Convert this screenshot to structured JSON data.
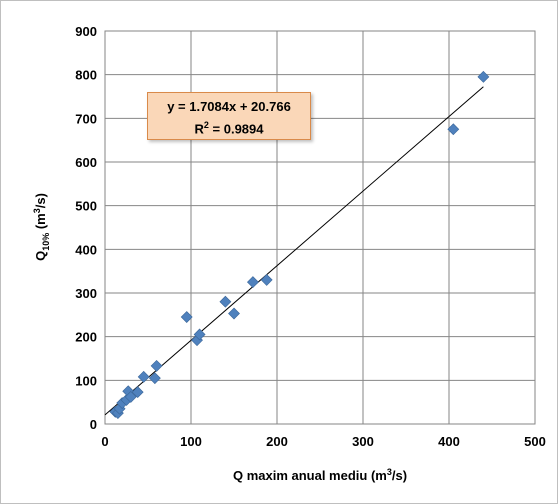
{
  "chart_data": {
    "type": "scatter",
    "xlabel_prefix": "Q maxim anual mediu (m",
    "xlabel_sup": "3",
    "xlabel_suffix": "/s)",
    "ylabel_main": "Q",
    "ylabel_sub": "10%",
    "ylabel_units_prefix": " (m",
    "ylabel_units_sup": "3",
    "ylabel_units_suffix": "/s)",
    "xlim": [
      0,
      500
    ],
    "ylim": [
      0,
      900
    ],
    "xticks": [
      0,
      100,
      200,
      300,
      400,
      500
    ],
    "yticks": [
      0,
      100,
      200,
      300,
      400,
      500,
      600,
      700,
      800,
      900
    ],
    "grid": true,
    "marker_color": "#4f81bd",
    "trendline": {
      "slope": 1.7084,
      "intercept": 20.766,
      "x_range": [
        0,
        440
      ],
      "color": "#000000"
    },
    "equation_text": "y = 1.7084x + 20.766",
    "r2_prefix": "R",
    "r2_sup": "2",
    "r2_suffix": " = 0.9894",
    "points": [
      {
        "x": 12,
        "y": 28
      },
      {
        "x": 15,
        "y": 25
      },
      {
        "x": 17,
        "y": 35
      },
      {
        "x": 20,
        "y": 48
      },
      {
        "x": 25,
        "y": 55
      },
      {
        "x": 27,
        "y": 75
      },
      {
        "x": 30,
        "y": 62
      },
      {
        "x": 38,
        "y": 73
      },
      {
        "x": 45,
        "y": 108
      },
      {
        "x": 58,
        "y": 105
      },
      {
        "x": 60,
        "y": 133
      },
      {
        "x": 95,
        "y": 245
      },
      {
        "x": 107,
        "y": 192
      },
      {
        "x": 110,
        "y": 205
      },
      {
        "x": 140,
        "y": 280
      },
      {
        "x": 150,
        "y": 253
      },
      {
        "x": 172,
        "y": 325
      },
      {
        "x": 188,
        "y": 330
      },
      {
        "x": 405,
        "y": 675
      },
      {
        "x": 440,
        "y": 795
      }
    ]
  }
}
